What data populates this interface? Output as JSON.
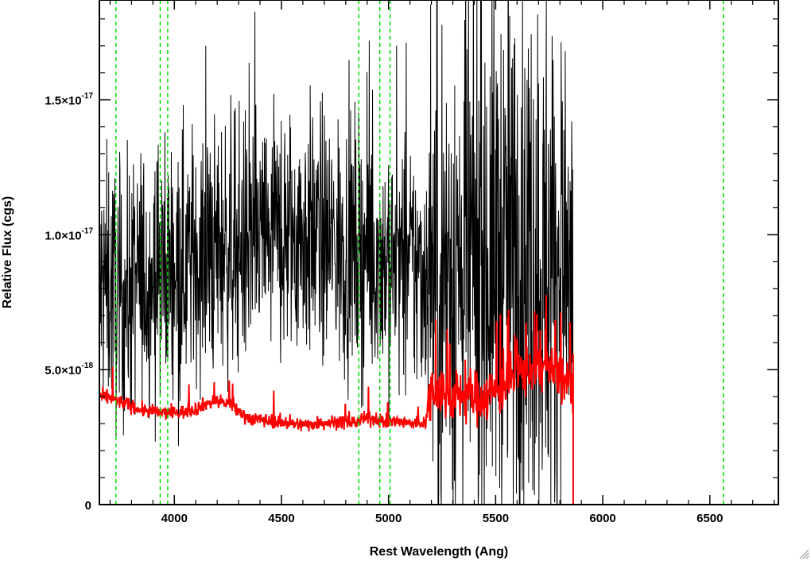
{
  "chart_data": {
    "type": "line",
    "title": "",
    "xlabel": "Rest Wavelength (Ang)",
    "ylabel": "Relative Flux (cgs)",
    "xlim": [
      3650,
      6820
    ],
    "ylim": [
      0,
      1.87e-17
    ],
    "x_ticks": [
      {
        "value": 4000,
        "label": "4000"
      },
      {
        "value": 4500,
        "label": "4500"
      },
      {
        "value": 5000,
        "label": "5000"
      },
      {
        "value": 5500,
        "label": "5500"
      },
      {
        "value": 6000,
        "label": "6000"
      },
      {
        "value": 6500,
        "label": "6500"
      }
    ],
    "y_ticks": [
      {
        "value": 0,
        "label": "0",
        "mantissa": "0",
        "exponent": ""
      },
      {
        "value": 5e-18,
        "label": "5.0×10^-18",
        "mantissa": "5.0×10",
        "exponent": "-18"
      },
      {
        "value": 1e-17,
        "label": "1.0×10^-17",
        "mantissa": "1.0×10",
        "exponent": "-17"
      },
      {
        "value": 1.5e-17,
        "label": "1.5×10^-17",
        "mantissa": "1.5×10",
        "exponent": "-17"
      }
    ],
    "vertical_lines": {
      "color": "#00dd00",
      "style": "dashed",
      "x": [
        3727,
        3934,
        3969,
        4861,
        4959,
        5007,
        6563
      ]
    },
    "series": [
      {
        "color": "#000000",
        "style": "noisy-spectrum",
        "x": [
          3650,
          3700,
          3750,
          3800,
          3850,
          3900,
          3950,
          4000,
          4050,
          4100,
          4150,
          4200,
          4250,
          4300,
          4350,
          4400,
          4450,
          4500,
          4550,
          4600,
          4650,
          4700,
          4750,
          4800,
          4850,
          4900,
          4950,
          5000,
          5050,
          5100,
          5150,
          5200,
          5250,
          5300,
          5350,
          5400,
          5450,
          5500,
          5550,
          5600,
          5650,
          5700,
          5750,
          5800,
          5850,
          5862,
          5863,
          6820
        ],
        "y": [
          8e-18,
          8.2e-18,
          7.5e-18,
          8e-18,
          8.5e-18,
          8.4e-18,
          8.8e-18,
          9e-18,
          9e-18,
          9.2e-18,
          9.3e-18,
          9.5e-18,
          9.6e-18,
          9.7e-18,
          9.6e-18,
          9.8e-18,
          9.9e-18,
          9.9e-18,
          1e-17,
          1.01e-17,
          1e-17,
          9.8e-18,
          9.6e-18,
          9.5e-18,
          9.6e-18,
          9.4e-18,
          9.2e-18,
          9e-18,
          8.9e-18,
          8.8e-18,
          8.7e-18,
          8.6e-18,
          8.5e-18,
          8.5e-18,
          8.6e-18,
          8.8e-18,
          9e-18,
          9.2e-18,
          9.3e-18,
          9.3e-18,
          9.2e-18,
          9e-18,
          8.9e-18,
          8.8e-18,
          8.8e-18,
          8.8e-18,
          0,
          0
        ]
      },
      {
        "color": "#ff0000",
        "style": "model-spectrum",
        "x": [
          3650,
          3700,
          3750,
          3800,
          3850,
          3900,
          3950,
          4000,
          4050,
          4100,
          4150,
          4200,
          4250,
          4300,
          4350,
          4400,
          4450,
          4500,
          4550,
          4600,
          4650,
          4700,
          4750,
          4800,
          4850,
          4900,
          4950,
          5000,
          5050,
          5100,
          5150,
          5175,
          5200,
          5250,
          5300,
          5350,
          5400,
          5450,
          5500,
          5550,
          5600,
          5650,
          5700,
          5750,
          5800,
          5850,
          5862,
          5863,
          6820
        ],
        "y": [
          4e-18,
          3.95e-18,
          3.8e-18,
          3.65e-18,
          3.5e-18,
          3.45e-18,
          3.4e-18,
          3.4e-18,
          3.45e-18,
          3.55e-18,
          3.75e-18,
          3.85e-18,
          3.75e-18,
          3.45e-18,
          3.2e-18,
          3.15e-18,
          3.1e-18,
          3.05e-18,
          3e-18,
          2.95e-18,
          3e-18,
          3.05e-18,
          3.05e-18,
          3.05e-18,
          3.05e-18,
          3.2e-18,
          3.15e-18,
          3.05e-18,
          3.05e-18,
          3e-18,
          3e-18,
          3.1e-18,
          4.3e-18,
          4.2e-18,
          4e-18,
          4.1e-18,
          4e-18,
          4e-18,
          4.2e-18,
          4.5e-18,
          4.8e-18,
          5e-18,
          5.2e-18,
          5e-18,
          4.7e-18,
          4.5e-18,
          4.5e-18,
          0,
          0
        ]
      }
    ],
    "grid": false,
    "legend": "none"
  },
  "resize_grip_icon": "resize-grip-icon"
}
